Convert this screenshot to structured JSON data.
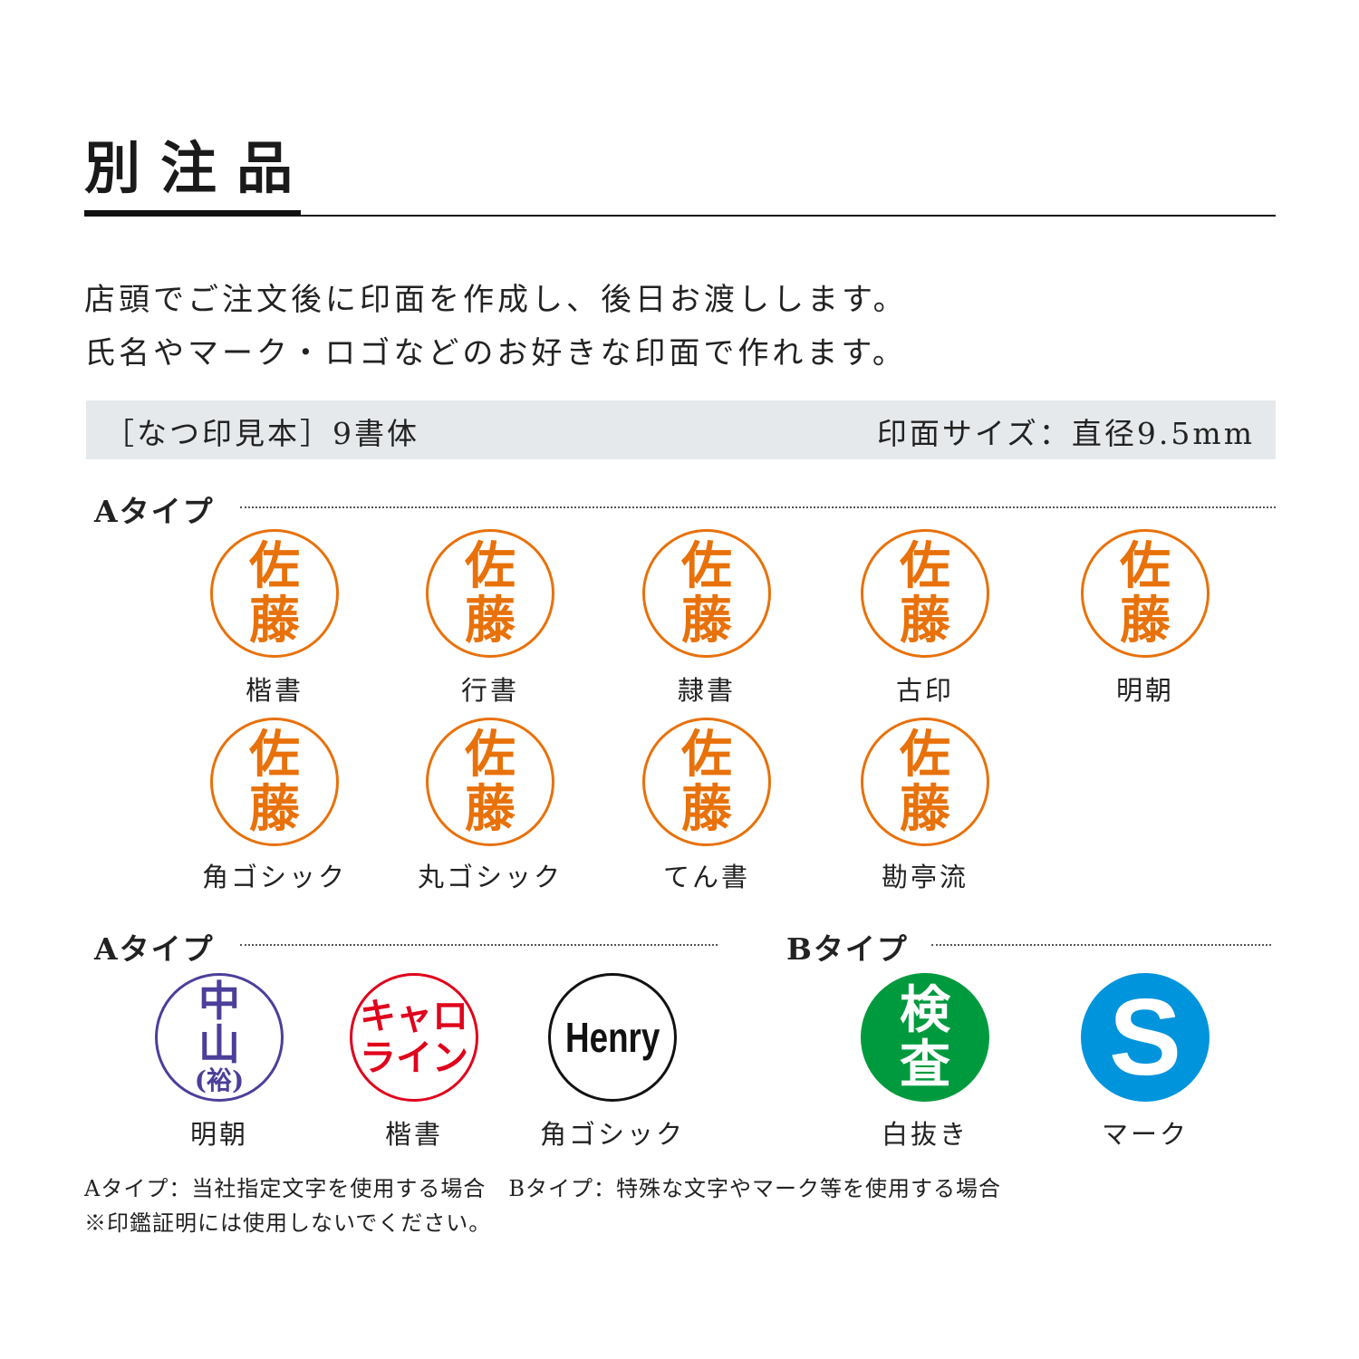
{
  "title": "別注品",
  "intro": [
    "店頭でご注文後に印面を作成し、後日お渡しします。",
    "氏名やマーク・ロゴなどのお好きな印面で作れます。"
  ],
  "band": {
    "left": "［なつ印見本］9書体",
    "right": "印面サイズ：直径9.5mm"
  },
  "sections": {
    "a1": "Aタイプ",
    "a2": "Aタイプ",
    "b": "Bタイプ"
  },
  "colors": {
    "orange": "#e8710a",
    "purple": "#4b3f9a",
    "red": "#e0001b",
    "black": "#111111",
    "green": "#009a3e",
    "blue": "#0094dc"
  },
  "stamps": [
    {
      "lines": [
        "佐",
        "藤"
      ],
      "label": "楷書",
      "color": "#e8710a"
    },
    {
      "lines": [
        "佐",
        "藤"
      ],
      "label": "行書",
      "color": "#e8710a"
    },
    {
      "lines": [
        "佐",
        "藤"
      ],
      "label": "隷書",
      "color": "#e8710a"
    },
    {
      "lines": [
        "佐",
        "藤"
      ],
      "label": "古印",
      "color": "#e8710a"
    },
    {
      "lines": [
        "佐",
        "藤"
      ],
      "label": "明朝",
      "color": "#e8710a"
    },
    {
      "lines": [
        "佐",
        "藤"
      ],
      "label": "角ゴシック",
      "color": "#e8710a"
    },
    {
      "lines": [
        "佐",
        "藤"
      ],
      "label": "丸ゴシック",
      "color": "#e8710a"
    },
    {
      "lines": [
        "佐",
        "藤"
      ],
      "label": "てん書",
      "color": "#e8710a"
    },
    {
      "lines": [
        "佐",
        "藤"
      ],
      "label": "勘亭流",
      "color": "#e8710a"
    },
    {
      "lines": [
        "中",
        "山",
        "(裕)"
      ],
      "label": "明朝",
      "color": "#4b3f9a"
    },
    {
      "lines": [
        "キャロ",
        "ライン"
      ],
      "label": "楷書",
      "color": "#e0001b"
    },
    {
      "lines": [
        "Henry"
      ],
      "label": "角ゴシック",
      "color": "#111111"
    },
    {
      "lines": [
        "検",
        "査"
      ],
      "label": "白抜き",
      "color": "#009a3e",
      "filled": true
    },
    {
      "lines": [
        "S"
      ],
      "label": "マーク",
      "color": "#0094dc",
      "filled": true
    }
  ],
  "notes": [
    "Aタイプ：当社指定文字を使用する場合　Bタイプ：特殊な文字やマーク等を使用する場合",
    "※印鑑証明には使用しないでください。"
  ]
}
